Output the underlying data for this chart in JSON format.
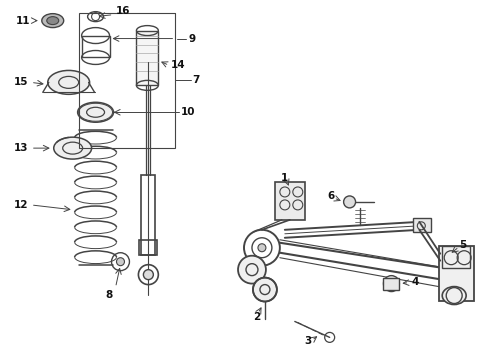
{
  "bg_color": "#ffffff",
  "line_color": "#444444",
  "fig_width": 4.89,
  "fig_height": 3.6,
  "dpi": 100,
  "lw": 0.9,
  "font_size": 7.5
}
